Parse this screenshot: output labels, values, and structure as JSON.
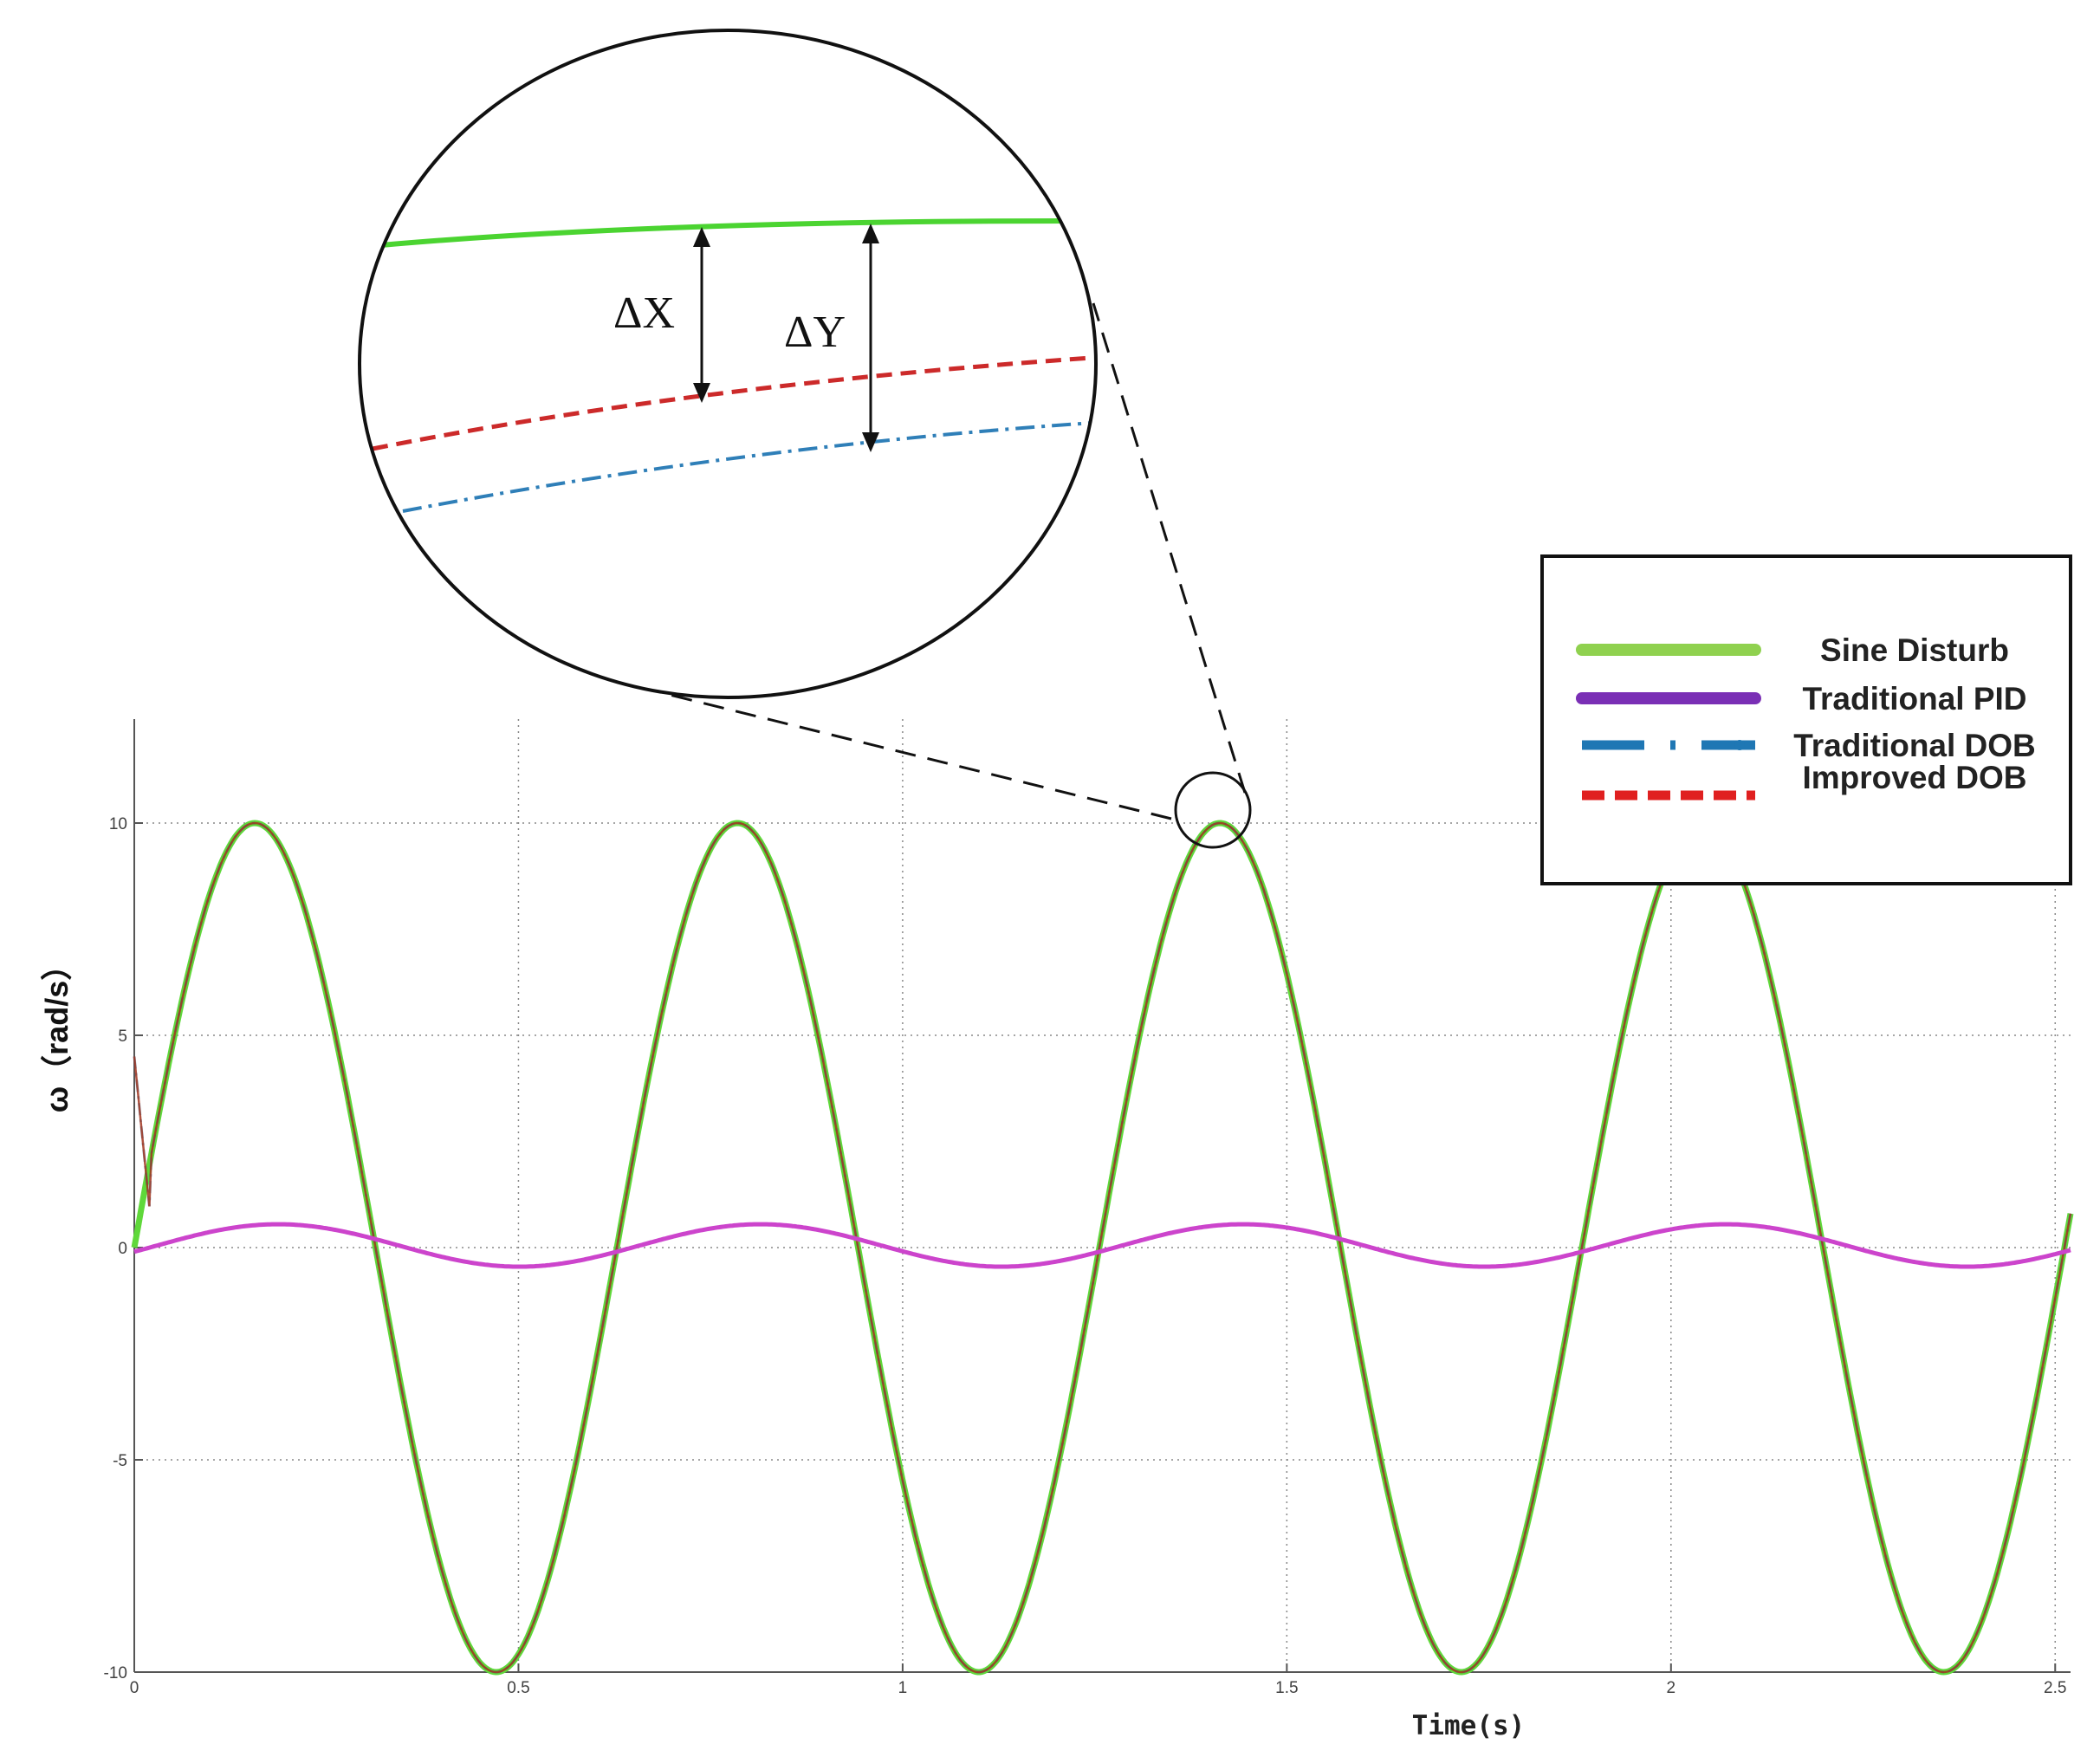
{
  "chart_data": {
    "type": "line",
    "title": "",
    "xlabel": "Time(s)",
    "ylabel": "ω（rad/s）",
    "xlim": [
      0,
      2.52
    ],
    "ylim": [
      -10,
      12
    ],
    "xticks": [
      0,
      0.5,
      1,
      1.5,
      2,
      2.5
    ],
    "xtick_labels": [
      "0",
      "0.5",
      "1",
      "1.5",
      "2",
      "2.5"
    ],
    "yticks": [
      -10,
      -5,
      0,
      5,
      10
    ],
    "ytick_labels": [
      "-10",
      "-5",
      "0",
      "5",
      "10"
    ],
    "grid": true,
    "legend_position": "top-right",
    "series": [
      {
        "name": "Sine Disturb",
        "color": "#55dd33",
        "style": "solid",
        "amplitude": 10,
        "period": 0.628,
        "offset": 0
      },
      {
        "name": "Traditional PID",
        "color": "#cc44cc",
        "style": "solid",
        "amplitude": 0.5,
        "period": 0.628,
        "offset": 1.55
      },
      {
        "name": "Traditional DOB",
        "color": "#2f7fb8",
        "style": "dash-dot",
        "amplitude": 10,
        "period": 0.628,
        "offset": 0
      },
      {
        "name": "Improved DOB",
        "color": "#dd2222",
        "style": "dashed",
        "amplitude": 10,
        "period": 0.628,
        "offset": 0
      }
    ],
    "legend_colors": {
      "Sine Disturb": "#8fd14f",
      "Traditional PID": "#7a2fb5",
      "Traditional DOB": "#1f77b4",
      "Improved DOB": "#e02020"
    },
    "inset": {
      "labels": [
        "ΔX",
        "ΔY"
      ],
      "zoom_center_x": 1.41,
      "zoom_center_y": 10
    }
  }
}
